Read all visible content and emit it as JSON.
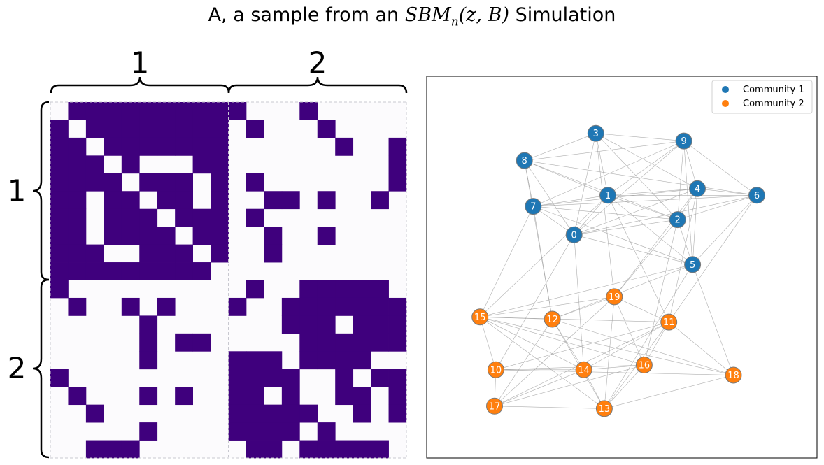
{
  "title": {
    "prefix": "A, a sample from an ",
    "math_main": "SBM",
    "math_sub": "n",
    "math_args": "(z, B)",
    "suffix": " Simulation"
  },
  "colors": {
    "edge_present": "#3f007d",
    "edge_absent": "#fcfbfd",
    "community_1": "#1f77b4",
    "community_2": "#ff7f0e",
    "graph_edge": "#a0a0a0"
  },
  "chart_data": [
    {
      "type": "heatmap",
      "title": "",
      "n": 20,
      "community_labels": [
        "1",
        "2"
      ],
      "block_sizes": [
        10,
        10
      ],
      "values_encoding": "1 = edge present (dark purple), 0 = no edge (white)",
      "matrix": [
        [
          0,
          1,
          1,
          1,
          1,
          1,
          1,
          1,
          1,
          1,
          1,
          0,
          0,
          0,
          1,
          0,
          0,
          0,
          0,
          0
        ],
        [
          1,
          0,
          1,
          1,
          1,
          1,
          1,
          1,
          1,
          1,
          0,
          1,
          0,
          0,
          0,
          1,
          0,
          0,
          0,
          0
        ],
        [
          1,
          1,
          0,
          1,
          1,
          1,
          1,
          1,
          1,
          1,
          0,
          0,
          0,
          0,
          0,
          0,
          1,
          0,
          0,
          1
        ],
        [
          1,
          1,
          1,
          0,
          1,
          0,
          0,
          0,
          1,
          1,
          0,
          0,
          0,
          0,
          0,
          0,
          0,
          0,
          0,
          1
        ],
        [
          1,
          1,
          1,
          1,
          0,
          1,
          1,
          1,
          0,
          1,
          0,
          1,
          0,
          0,
          0,
          0,
          0,
          0,
          0,
          1
        ],
        [
          1,
          1,
          0,
          1,
          1,
          0,
          1,
          1,
          0,
          1,
          0,
          0,
          1,
          1,
          0,
          1,
          0,
          0,
          1,
          0
        ],
        [
          1,
          1,
          0,
          1,
          1,
          1,
          0,
          1,
          1,
          1,
          0,
          1,
          0,
          0,
          0,
          0,
          0,
          0,
          0,
          0
        ],
        [
          1,
          1,
          0,
          1,
          1,
          1,
          1,
          0,
          1,
          1,
          0,
          0,
          1,
          0,
          0,
          1,
          0,
          0,
          0,
          0
        ],
        [
          1,
          1,
          1,
          0,
          0,
          1,
          1,
          1,
          0,
          1,
          0,
          0,
          1,
          0,
          0,
          0,
          0,
          0,
          0,
          0
        ],
        [
          1,
          1,
          1,
          1,
          1,
          1,
          1,
          1,
          1,
          0,
          0,
          0,
          0,
          0,
          0,
          0,
          0,
          0,
          0,
          0
        ],
        [
          1,
          0,
          0,
          0,
          0,
          0,
          0,
          0,
          0,
          0,
          0,
          1,
          0,
          0,
          1,
          1,
          1,
          1,
          1,
          0
        ],
        [
          0,
          1,
          0,
          0,
          1,
          0,
          1,
          0,
          0,
          0,
          1,
          0,
          0,
          1,
          1,
          1,
          1,
          1,
          1,
          1
        ],
        [
          0,
          0,
          0,
          0,
          0,
          1,
          0,
          0,
          0,
          0,
          0,
          0,
          0,
          1,
          1,
          1,
          0,
          1,
          1,
          1
        ],
        [
          0,
          0,
          0,
          0,
          0,
          1,
          0,
          1,
          1,
          0,
          0,
          0,
          0,
          0,
          1,
          1,
          1,
          1,
          1,
          1
        ],
        [
          0,
          0,
          0,
          0,
          0,
          1,
          0,
          0,
          0,
          0,
          1,
          1,
          1,
          0,
          1,
          1,
          1,
          1,
          0,
          0
        ],
        [
          1,
          0,
          0,
          0,
          0,
          0,
          0,
          0,
          0,
          0,
          1,
          1,
          1,
          1,
          0,
          0,
          1,
          0,
          1,
          1
        ],
        [
          0,
          1,
          0,
          0,
          0,
          1,
          0,
          1,
          0,
          0,
          1,
          1,
          0,
          1,
          0,
          0,
          1,
          1,
          0,
          1
        ],
        [
          0,
          0,
          1,
          0,
          0,
          0,
          0,
          0,
          0,
          0,
          1,
          1,
          1,
          1,
          1,
          0,
          0,
          1,
          0,
          1
        ],
        [
          0,
          0,
          0,
          0,
          0,
          1,
          0,
          0,
          0,
          0,
          1,
          1,
          1,
          1,
          0,
          1,
          0,
          0,
          0,
          0
        ],
        [
          0,
          0,
          1,
          1,
          1,
          0,
          0,
          0,
          0,
          0,
          0,
          1,
          1,
          0,
          1,
          1,
          1,
          1,
          1,
          0
        ]
      ]
    },
    {
      "type": "network",
      "title": "",
      "legend": {
        "placement": "top-right",
        "entries": [
          {
            "label": "Community 1",
            "color": "#1f77b4"
          },
          {
            "label": "Community 2",
            "color": "#ff7f0e"
          }
        ]
      },
      "nodes": [
        {
          "id": 0,
          "label": "0",
          "community": 1,
          "x": 0.355,
          "y": 0.6
        },
        {
          "id": 1,
          "label": "1",
          "community": 1,
          "x": 0.459,
          "y": 0.725
        },
        {
          "id": 2,
          "label": "2",
          "community": 1,
          "x": 0.674,
          "y": 0.648
        },
        {
          "id": 3,
          "label": "3",
          "community": 1,
          "x": 0.422,
          "y": 0.921
        },
        {
          "id": 4,
          "label": "4",
          "community": 1,
          "x": 0.735,
          "y": 0.746
        },
        {
          "id": 5,
          "label": "5",
          "community": 1,
          "x": 0.72,
          "y": 0.506
        },
        {
          "id": 6,
          "label": "6",
          "community": 1,
          "x": 0.918,
          "y": 0.725
        },
        {
          "id": 7,
          "label": "7",
          "community": 1,
          "x": 0.229,
          "y": 0.69
        },
        {
          "id": 8,
          "label": "8",
          "community": 1,
          "x": 0.202,
          "y": 0.835
        },
        {
          "id": 9,
          "label": "9",
          "community": 1,
          "x": 0.693,
          "y": 0.897
        },
        {
          "id": 10,
          "label": "10",
          "community": 2,
          "x": 0.114,
          "y": 0.173
        },
        {
          "id": 11,
          "label": "11",
          "community": 2,
          "x": 0.647,
          "y": 0.324
        },
        {
          "id": 12,
          "label": "12",
          "community": 2,
          "x": 0.288,
          "y": 0.333
        },
        {
          "id": 13,
          "label": "13",
          "community": 2,
          "x": 0.448,
          "y": 0.05
        },
        {
          "id": 14,
          "label": "14",
          "community": 2,
          "x": 0.385,
          "y": 0.173
        },
        {
          "id": 15,
          "label": "15",
          "community": 2,
          "x": 0.065,
          "y": 0.34
        },
        {
          "id": 16,
          "label": "16",
          "community": 2,
          "x": 0.571,
          "y": 0.188
        },
        {
          "id": 17,
          "label": "17",
          "community": 2,
          "x": 0.11,
          "y": 0.058
        },
        {
          "id": 18,
          "label": "18",
          "community": 2,
          "x": 0.846,
          "y": 0.156
        },
        {
          "id": 19,
          "label": "19",
          "community": 2,
          "x": 0.479,
          "y": 0.404
        }
      ]
    }
  ]
}
